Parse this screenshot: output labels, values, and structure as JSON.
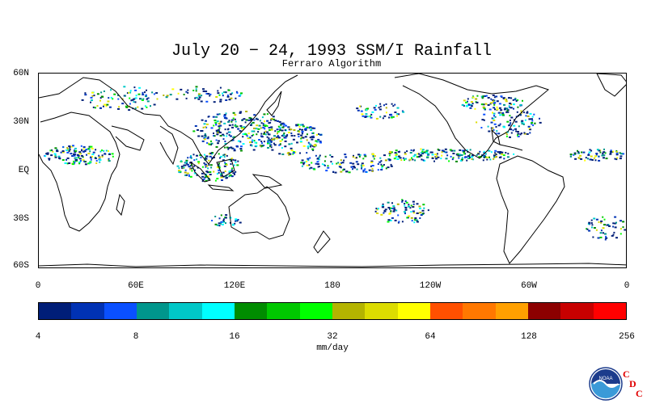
{
  "title": "July 20 − 24, 1993 SSM/I Rainfall",
  "subtitle": "Ferraro Algorithm",
  "map": {
    "lat_labels": [
      "60N",
      "30N",
      "EQ",
      "30S",
      "60S"
    ],
    "lon_labels": [
      "0",
      "60E",
      "120E",
      "180",
      "120W",
      "60W",
      "0"
    ]
  },
  "colorbar": {
    "colors": [
      "#001e78",
      "#0032b4",
      "#0a50ff",
      "#00968c",
      "#00c8c8",
      "#00ffff",
      "#008c00",
      "#00c800",
      "#00ff00",
      "#b4b400",
      "#dcdc00",
      "#ffff00",
      "#ff5000",
      "#ff7800",
      "#ffa000",
      "#8c0000",
      "#c80000",
      "#ff0000"
    ],
    "tick_labels": [
      "4",
      "8",
      "16",
      "32",
      "64",
      "128",
      "256"
    ],
    "units": "mm/day"
  },
  "logo": {
    "icon": "noaa-logo-icon",
    "text": "NOAA",
    "cdc_letters": [
      "C",
      "D",
      "C"
    ]
  }
}
